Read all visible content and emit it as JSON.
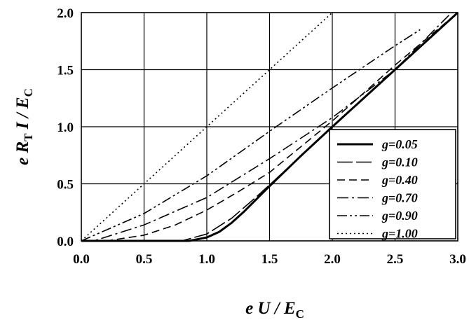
{
  "chart_data": {
    "type": "line",
    "xlabel": {
      "pre": "e U / E",
      "sub": "C"
    },
    "ylabel": {
      "pre1": "e R",
      "sub1": "T",
      "mid": " I / E",
      "sub2": "C"
    },
    "xlim": [
      0,
      3
    ],
    "ylim": [
      0,
      2
    ],
    "x_ticks": [
      "0.0",
      "0.5",
      "1.0",
      "1.5",
      "2.0",
      "2.5",
      "3.0"
    ],
    "y_ticks": [
      "0.0",
      "0.5",
      "1.0",
      "1.5",
      "2.0"
    ],
    "grid": true,
    "legend_position": "right",
    "series": [
      {
        "name": "g=0.05",
        "dash": "solid",
        "width": 3,
        "x": [
          0,
          0.86,
          1.0,
          1.1,
          1.2,
          1.3,
          1.4,
          1.5,
          1.75,
          2.0,
          2.5,
          3.0
        ],
        "y": [
          0,
          0,
          0.03,
          0.08,
          0.16,
          0.26,
          0.37,
          0.48,
          0.745,
          1.0,
          1.5,
          2.0
        ]
      },
      {
        "name": "g=0.10",
        "dash": "longdash",
        "width": 1.6,
        "x": [
          0,
          0.8,
          1.0,
          1.2,
          1.4,
          1.5,
          2.0,
          2.5,
          3.0
        ],
        "y": [
          0,
          0,
          0.06,
          0.2,
          0.39,
          0.49,
          1.0,
          1.5,
          2.0
        ]
      },
      {
        "name": "g=0.40",
        "dash": "dash",
        "width": 1.6,
        "x": [
          0,
          0.2,
          0.5,
          0.75,
          1.0,
          1.25,
          1.5,
          2.0,
          2.5,
          3.0
        ],
        "y": [
          0,
          0,
          0.05,
          0.14,
          0.27,
          0.43,
          0.6,
          1.05,
          1.54,
          2.0
        ]
      },
      {
        "name": "g=0.70",
        "dash": "dashdot",
        "width": 1.6,
        "x": [
          0,
          0.1,
          0.5,
          1.0,
          1.5,
          2.0,
          2.5,
          2.95
        ],
        "y": [
          0,
          0,
          0.14,
          0.38,
          0.72,
          1.08,
          1.5,
          2.0
        ]
      },
      {
        "name": "g=0.90",
        "dash": "dashdotdot",
        "width": 1.6,
        "x": [
          0,
          0.5,
          1.0,
          1.5,
          2.0,
          2.5,
          2.7
        ],
        "y": [
          0,
          0.24,
          0.57,
          0.96,
          1.34,
          1.71,
          1.85
        ]
      },
      {
        "name": "g=1.00",
        "dash": "dot",
        "width": 1.6,
        "x": [
          0,
          2.0
        ],
        "y": [
          0,
          2.0
        ]
      }
    ]
  }
}
